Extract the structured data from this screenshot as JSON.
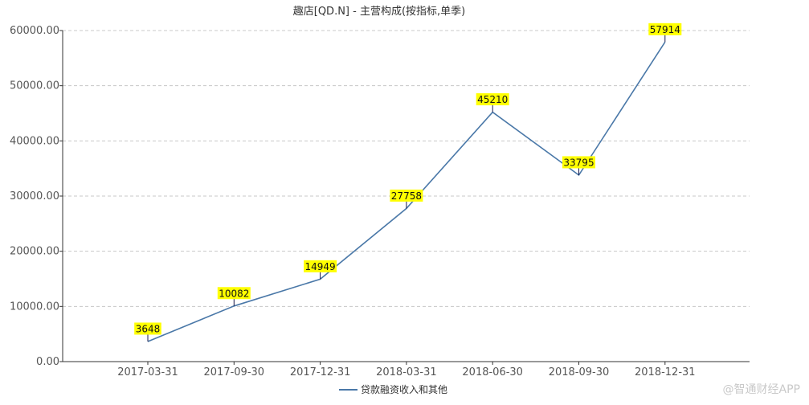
{
  "chart_data": {
    "type": "line",
    "title": "趣店[QD.N] - 主营构成(按指标,单季)",
    "categories": [
      "2017-03-31",
      "2017-09-30",
      "2017-12-31",
      "2018-03-31",
      "2018-06-30",
      "2018-09-30",
      "2018-12-31"
    ],
    "series": [
      {
        "name": "贷款融资收入和其他",
        "values": [
          3648,
          10082,
          14949,
          27758,
          45210,
          33795,
          57914
        ],
        "color": "#4a78a8"
      }
    ],
    "data_labels": [
      "3648",
      "10082",
      "14949",
      "27758",
      "45210",
      "33795",
      "57914"
    ],
    "y_ticks": [
      "0.00",
      "10000.00",
      "20000.00",
      "30000.00",
      "40000.00",
      "50000.00",
      "60000.00"
    ],
    "ylim": [
      0,
      60000
    ],
    "grid": "horizontal-dashed",
    "legend_position": "bottom-center",
    "label_bg_color": "#ffff00"
  },
  "watermark": {
    "text": "@智通财经APP"
  }
}
